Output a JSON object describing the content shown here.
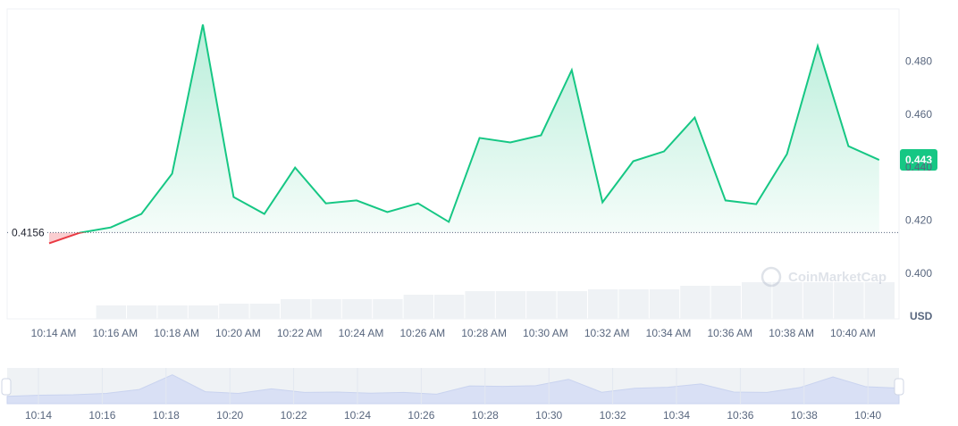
{
  "chart_data": {
    "type": "line",
    "categories": [
      "10:14 AM",
      null,
      "10:16 AM",
      null,
      "10:18 AM",
      null,
      "10:20 AM",
      null,
      "10:22 AM",
      null,
      "10:24 AM",
      null,
      "10:26 AM",
      null,
      "10:28 AM",
      null,
      "10:30 AM",
      null,
      "10:32 AM",
      null,
      "10:34 AM",
      null,
      "10:36 AM",
      null,
      "10:38 AM",
      null,
      "10:40 AM",
      null
    ],
    "series": [
      {
        "name": "Price",
        "color": "#16c784",
        "values": [
          0.4115,
          0.4155,
          0.4175,
          0.4226,
          0.4378,
          0.4941,
          0.429,
          0.4226,
          0.4401,
          0.4266,
          0.4277,
          0.4233,
          0.4266,
          0.4196,
          0.4513,
          0.4496,
          0.4523,
          0.4769,
          0.427,
          0.4425,
          0.4462,
          0.459,
          0.4277,
          0.4263,
          0.4452,
          0.486,
          0.4482,
          0.443
        ]
      }
    ],
    "below_color": "#ea3943",
    "volume": [
      null,
      null,
      15,
      15,
      15,
      15,
      17,
      17,
      22,
      22,
      22,
      22,
      27,
      27,
      31,
      31,
      31,
      31,
      33,
      33,
      33,
      37,
      37,
      41,
      41,
      41,
      41,
      41
    ],
    "volume_color": "#eff2f5",
    "baseline": {
      "value": 0.4156,
      "label": "0.4156"
    },
    "current_price": {
      "value": 0.443,
      "label": "0.443"
    },
    "ylim": [
      0.383,
      0.5
    ],
    "yticks": [
      {
        "value": 0.4,
        "label": "0.400"
      },
      {
        "value": 0.42,
        "label": "0.420"
      },
      {
        "value": 0.44,
        "label": "0.440"
      },
      {
        "value": 0.46,
        "label": "0.460"
      },
      {
        "value": 0.48,
        "label": "0.480"
      }
    ],
    "grid": true,
    "currency": "USD",
    "watermark": "CoinMarketCap",
    "navigator_labels": [
      "10:14",
      "10:16",
      "10:18",
      "10:20",
      "10:22",
      "10:24",
      "10:26",
      "10:28",
      "10:30",
      "10:32",
      "10:34",
      "10:36",
      "10:38",
      "10:40"
    ]
  }
}
